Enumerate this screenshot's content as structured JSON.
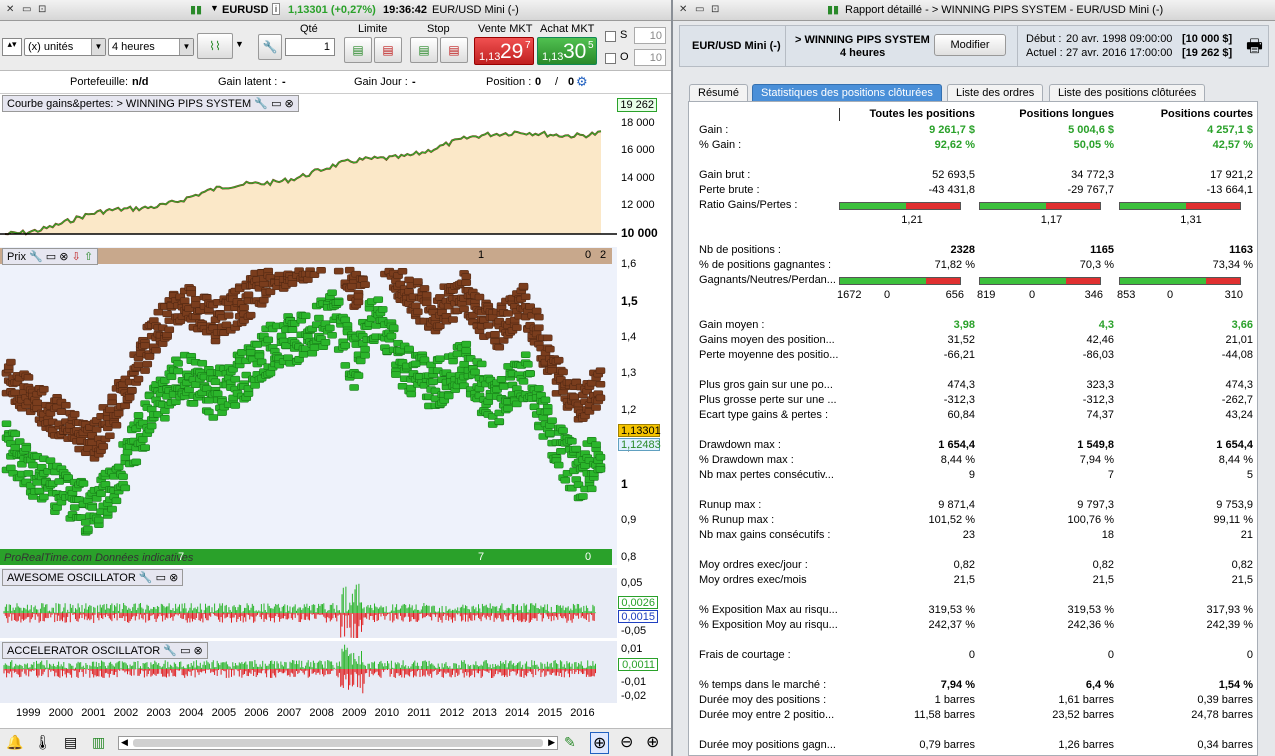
{
  "left": {
    "title": {
      "symbol": "EURUSD",
      "price": "1,13301 (+0,27%)",
      "time": "19:36:42",
      "name": "EUR/USD Mini (-)"
    },
    "toolbar": {
      "units": "(x) unités",
      "timeframe": "4 heures",
      "qte_label": "Qté",
      "qte_value": "1",
      "limite_label": "Limite",
      "stop_label": "Stop",
      "vente_label": "Vente MKT",
      "vente_price_small": "1,13",
      "vente_price_big": "29",
      "vente_price_sup": "7",
      "achat_label": "Achat MKT",
      "achat_price_small": "1,13",
      "achat_price_big": "30",
      "achat_price_sup": "5",
      "s_label": "S",
      "o_label": "O",
      "s_value": "10",
      "o_value": "10"
    },
    "info": {
      "portefeuille_label": "Portefeuille:",
      "portefeuille_value": "n/d",
      "gain_latent_label": "Gain latent :",
      "gain_latent_value": "-",
      "gain_jour_label": "Gain Jour :",
      "gain_jour_value": "-",
      "position_label": "Position :",
      "position_value": "0",
      "position_value2": "0"
    },
    "equity": {
      "header": "Courbe gains&pertes: > WINNING PIPS SYSTEM",
      "last": "19 262",
      "ticks": [
        "18 000",
        "16 000",
        "14 000",
        "12 000",
        "10 000"
      ],
      "base": "10 000"
    },
    "price": {
      "header": "Prix",
      "marker1": "1",
      "marker2": "0",
      "marker3": "2",
      "ticks": [
        "1,6",
        "1,5",
        "1,4",
        "1,3",
        "1,2",
        "1,1",
        "1",
        "0,9",
        "0,8"
      ],
      "last1": "1,13301",
      "last2": "1,12483",
      "watermark": "ProRealTime.com  Données indicatives",
      "bottom_marker1": "7",
      "bottom_marker2": "7",
      "bottom_marker3": "0"
    },
    "ao": {
      "header": "AWESOME OSCILLATOR",
      "ticks": [
        "0,05",
        "-0,05"
      ],
      "v1": "0,0026",
      "v2": "0,0015"
    },
    "ac": {
      "header": "ACCELERATOR OSCILLATOR",
      "ticks": [
        "0,01",
        "-0,01",
        "-0,02"
      ],
      "v1": "0,0011"
    },
    "years": [
      "1999",
      "2000",
      "2001",
      "2002",
      "2003",
      "2004",
      "2005",
      "2006",
      "2007",
      "2008",
      "2009",
      "2010",
      "2011",
      "2012",
      "2013",
      "2014",
      "2015",
      "2016"
    ]
  },
  "right": {
    "title": "Rapport détaillé - > WINNING PIPS SYSTEM - EUR/USD Mini (-)",
    "header": {
      "instrument": "EUR/USD Mini (-)",
      "system": "> WINNING PIPS SYSTEM",
      "period": "4 heures",
      "modify": "Modifier",
      "debut_label": "Début :",
      "debut": "20 avr. 1998 09:00:00",
      "debut_cap": "[10 000 $]",
      "actuel_label": "Actuel :",
      "actuel": "27 avr. 2016 17:00:00",
      "actuel_cap": "[19 262 $]"
    },
    "tabs": [
      "Résumé",
      "Statistiques des positions clôturées",
      "Liste des ordres",
      "Liste des positions clôturées"
    ],
    "columns": [
      "Toutes les positions",
      "Positions longues",
      "Positions courtes"
    ],
    "rows": [
      {
        "k": "Gain :",
        "v": [
          "9 261,7 $",
          "5 004,6 $",
          "4 257,1 $"
        ],
        "style": "green"
      },
      {
        "k": "% Gain :",
        "v": [
          "92,62 %",
          "50,05 %",
          "42,57 %"
        ],
        "style": "green"
      },
      {
        "k": "Gain brut :",
        "v": [
          "52 693,5",
          "34 772,3",
          "17 921,2"
        ]
      },
      {
        "k": "Perte brute :",
        "v": [
          "-43 431,8",
          "-29 767,7",
          "-13 664,1"
        ]
      },
      {
        "k": "Ratio Gains/Pertes :",
        "v": [
          "1,21",
          "1,17",
          "1,31"
        ]
      },
      {
        "k": "Nb de positions :",
        "v": [
          "2328",
          "1165",
          "1163"
        ],
        "style": "bold"
      },
      {
        "k": "% de positions gagnantes :",
        "v": [
          "71,82 %",
          "70,3 %",
          "73,34 %"
        ]
      },
      {
        "k": "Gagnants/Neutres/Perdan...",
        "v": [
          "1672",
          "0",
          "656",
          "819",
          "0",
          "346",
          "853",
          "0",
          "310"
        ]
      },
      {
        "k": "Gain moyen :",
        "v": [
          "3,98",
          "4,3",
          "3,66"
        ],
        "style": "green"
      },
      {
        "k": "Gains moyen des position...",
        "v": [
          "31,52",
          "42,46",
          "21,01"
        ]
      },
      {
        "k": "Perte moyenne des positio...",
        "v": [
          "-66,21",
          "-86,03",
          "-44,08"
        ]
      },
      {
        "k": "Plus gros gain sur une po...",
        "v": [
          "474,3",
          "323,3",
          "474,3"
        ]
      },
      {
        "k": "Plus grosse perte sur une ...",
        "v": [
          "-312,3",
          "-312,3",
          "-262,7"
        ]
      },
      {
        "k": "Ecart type gains & pertes :",
        "v": [
          "60,84",
          "74,37",
          "43,24"
        ]
      },
      {
        "k": "Drawdown max :",
        "v": [
          "1 654,4",
          "1 549,8",
          "1 654,4"
        ],
        "style": "bold"
      },
      {
        "k": "% Drawdown max :",
        "v": [
          "8,44 %",
          "7,94 %",
          "8,44 %"
        ]
      },
      {
        "k": "Nb max pertes consécutiv...",
        "v": [
          "9",
          "7",
          "5"
        ]
      },
      {
        "k": "Runup max :",
        "v": [
          "9 871,4",
          "9 797,3",
          "9 753,9"
        ]
      },
      {
        "k": "% Runup max :",
        "v": [
          "101,52 %",
          "100,76 %",
          "99,11 %"
        ]
      },
      {
        "k": "Nb max gains consécutifs :",
        "v": [
          "23",
          "18",
          "21"
        ]
      },
      {
        "k": "Moy ordres exec/jour :",
        "v": [
          "0,82",
          "0,82",
          "0,82"
        ]
      },
      {
        "k": "Moy ordres exec/mois",
        "v": [
          "21,5",
          "21,5",
          "21,5"
        ]
      },
      {
        "k": "% Exposition Max au risqu...",
        "v": [
          "319,53 %",
          "319,53 %",
          "317,93 %"
        ]
      },
      {
        "k": "% Exposition Moy au risqu...",
        "v": [
          "242,37 %",
          "242,36 %",
          "242,39 %"
        ]
      },
      {
        "k": "Frais de courtage :",
        "v": [
          "0",
          "0",
          "0"
        ]
      },
      {
        "k": "% temps dans le marché :",
        "v": [
          "7,94 %",
          "6,4 %",
          "1,54 %"
        ],
        "style": "bold"
      },
      {
        "k": "Durée moy des positions :",
        "v": [
          "1 barres",
          "1,61 barres",
          "0,39 barres"
        ]
      },
      {
        "k": "Durée moy entre 2 positio...",
        "v": [
          "11,58 barres",
          "23,52 barres",
          "24,78 barres"
        ]
      },
      {
        "k": "Durée moy positions gagn...",
        "v": [
          "0,79 barres",
          "1,26 barres",
          "0,34 barres"
        ]
      }
    ]
  },
  "colors": {
    "green": "#2aa12a",
    "red": "#e03030",
    "accent": "#4a8fd8",
    "brown": "#7a3d1d",
    "candle_green": "#2bb52b"
  }
}
